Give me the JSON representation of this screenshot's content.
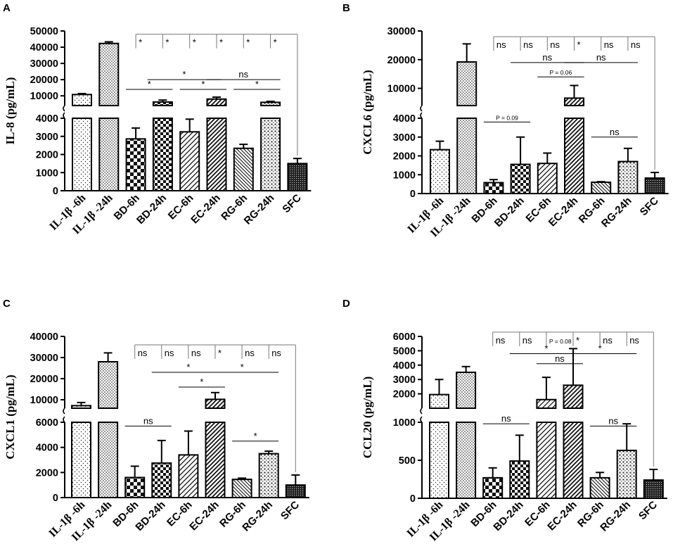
{
  "figure": {
    "categories": [
      "IL-1β -6h",
      "IL-1β -24h",
      "BD-6h",
      "BD-24h",
      "EC-6h",
      "EC-24h",
      "RG-6h",
      "RG-24h",
      "SFC"
    ],
    "bar_fills": [
      "pat-dots-sparse",
      "pat-dots-dense",
      "pat-checker",
      "pat-checker-fine",
      "pat-hatch",
      "pat-hatch-bold",
      "pat-hatch-fine",
      "pat-dots-grid",
      "pat-dense-dots"
    ]
  },
  "chart_data": [
    {
      "panel": "A",
      "type": "bar",
      "ylabel": "IL-8 (pg/mL)",
      "axis_break": true,
      "lower_range": [
        0,
        4000
      ],
      "lower_ticks": [
        "0",
        "1000",
        "2000",
        "3000",
        "4000"
      ],
      "upper_range": [
        4000,
        50000
      ],
      "upper_ticks": [
        "10000",
        "20000",
        "30000",
        "40000",
        "50000"
      ],
      "values": [
        10800,
        42300,
        2860,
        6200,
        3250,
        8000,
        2340,
        6000,
        1500
      ],
      "errors": [
        600,
        1000,
        600,
        1200,
        700,
        1200,
        220,
        600,
        280
      ],
      "annotations": [
        {
          "kind": "bracket",
          "y": 48000,
          "from": 2,
          "to": 8,
          "drops": [
            2,
            3,
            4,
            5,
            6,
            7
          ],
          "labels": [
            "*",
            "*",
            "*",
            "*",
            "*",
            "*"
          ]
        },
        {
          "kind": "line",
          "y": 20000,
          "from": 2.8,
          "to": 4.8,
          "label": "*"
        },
        {
          "kind": "line",
          "y": 20000,
          "from": 5,
          "to": 7,
          "label": "ns"
        },
        {
          "kind": "line",
          "y": 14000,
          "from": 2,
          "to": 3,
          "label": "*"
        },
        {
          "kind": "line",
          "y": 14000,
          "from": 4,
          "to": 5,
          "label": "*"
        },
        {
          "kind": "line",
          "y": 14000,
          "from": 6,
          "to": 7,
          "label": "*"
        }
      ]
    },
    {
      "panel": "B",
      "type": "bar",
      "ylabel": "CXCL6 (pg/mL)",
      "axis_break": true,
      "lower_range": [
        0,
        4000
      ],
      "lower_ticks": [
        "0",
        "1000",
        "2000",
        "3000",
        "4000"
      ],
      "upper_range": [
        4000,
        30000
      ],
      "upper_ticks": [
        "10000",
        "20000",
        "30000"
      ],
      "values": [
        2330,
        19200,
        580,
        1550,
        1600,
        6600,
        600,
        1700,
        820
      ],
      "errors": [
        450,
        6300,
        160,
        1450,
        550,
        4400,
        30,
        700,
        300
      ],
      "annotations": [
        {
          "kind": "bracket",
          "y": 28000,
          "from": 2,
          "to": 8,
          "drops": [
            2,
            3,
            4,
            5,
            6,
            7
          ],
          "labels": [
            "ns",
            "ns",
            "ns",
            "*",
            "ns",
            "ns"
          ]
        },
        {
          "kind": "line",
          "y": 19000,
          "from": 3,
          "to": 5,
          "label": "ns"
        },
        {
          "kind": "line",
          "y": 19000,
          "from": 5,
          "to": 7,
          "label": "ns"
        },
        {
          "kind": "line",
          "y": 14000,
          "from": 4,
          "to": 5,
          "label": "P = 0.06"
        },
        {
          "kind": "line",
          "y": 3800,
          "from": 2,
          "to": 3,
          "label": "P = 0.09"
        },
        {
          "kind": "line",
          "y": 3000,
          "from": 6,
          "to": 7,
          "label": "ns"
        }
      ]
    },
    {
      "panel": "C",
      "type": "bar",
      "ylabel": "CXCL1 (pg/mL)",
      "axis_break": true,
      "lower_range": [
        0,
        6000
      ],
      "lower_ticks": [
        "0",
        "2000",
        "4000",
        "6000"
      ],
      "upper_range": [
        6000,
        40000
      ],
      "upper_ticks": [
        "10000",
        "20000",
        "30000",
        "40000"
      ],
      "values": [
        7200,
        28000,
        1600,
        2750,
        3400,
        10200,
        1450,
        3500,
        1000
      ],
      "errors": [
        1500,
        4200,
        900,
        1800,
        1900,
        3200,
        100,
        200,
        800
      ],
      "annotations": [
        {
          "kind": "bracket",
          "y": 36000,
          "from": 2,
          "to": 8,
          "drops": [
            2,
            3,
            4,
            5,
            6,
            7
          ],
          "labels": [
            "ns",
            "ns",
            "ns",
            "*",
            "ns",
            "ns"
          ]
        },
        {
          "kind": "line",
          "y": 23000,
          "from": 3,
          "to": 5,
          "label": "*"
        },
        {
          "kind": "line",
          "y": 23000,
          "from": 5,
          "to": 7,
          "label": "*"
        },
        {
          "kind": "line",
          "y": 16000,
          "from": 4,
          "to": 5,
          "label": "*"
        },
        {
          "kind": "line",
          "y": 5700,
          "from": 2,
          "to": 3,
          "label": "ns"
        },
        {
          "kind": "line",
          "y": 4500,
          "from": 6,
          "to": 7,
          "label": "*"
        }
      ]
    },
    {
      "panel": "D",
      "type": "bar",
      "ylabel": "CCL20 (pg/mL)",
      "axis_break": true,
      "lower_range": [
        0,
        1000
      ],
      "lower_ticks": [
        "0",
        "500",
        "1000"
      ],
      "upper_range": [
        1000,
        6000
      ],
      "upper_ticks": [
        "2000",
        "3000",
        "4000",
        "5000",
        "6000"
      ],
      "values": [
        1950,
        3500,
        270,
        490,
        1600,
        2600,
        270,
        630,
        240
      ],
      "errors": [
        1050,
        400,
        130,
        340,
        1550,
        2550,
        70,
        350,
        140
      ],
      "annotations": [
        {
          "kind": "bracket",
          "y": 6300,
          "from": 2,
          "to": 8,
          "drops": [
            2,
            3,
            4,
            5,
            6,
            7
          ],
          "labels": [
            "ns",
            "ns",
            "P = 0.08",
            "*",
            "ns",
            "ns"
          ]
        },
        {
          "kind": "line",
          "y": 4800,
          "from": 3,
          "to": 5,
          "label": "*"
        },
        {
          "kind": "line",
          "y": 4800,
          "from": 5,
          "to": 7,
          "label": "*"
        },
        {
          "kind": "line",
          "y": 4100,
          "from": 4,
          "to": 5,
          "label": "ns"
        },
        {
          "kind": "line",
          "y": 980,
          "from": 2,
          "to": 3,
          "label": "ns"
        },
        {
          "kind": "line",
          "y": 950,
          "from": 6,
          "to": 7,
          "label": "ns"
        }
      ]
    }
  ]
}
